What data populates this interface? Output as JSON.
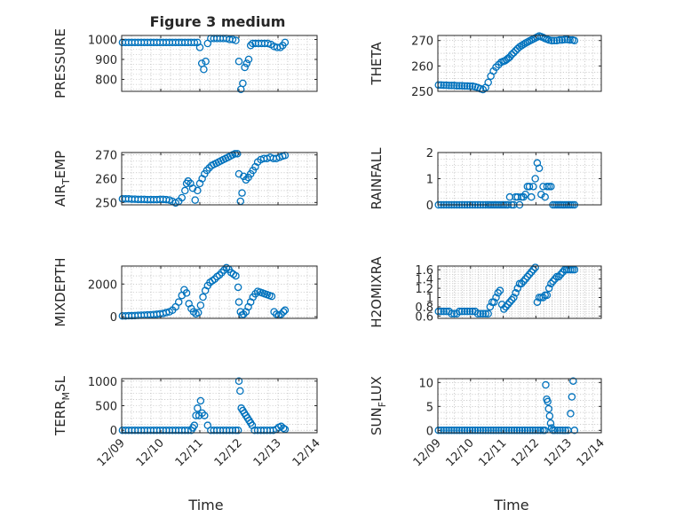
{
  "figure": {
    "title": "Figure 3 medium",
    "marker_color": "#0072BD"
  },
  "chart_data": [
    {
      "type": "scatter",
      "ylabel": "PRESSURE",
      "xlabel": "",
      "xlim": [
        0,
        5
      ],
      "ylim": [
        740,
        1020
      ],
      "yticks": [
        800,
        900,
        1000
      ],
      "yticklabels": [
        "800",
        "900",
        "1000"
      ],
      "xticklabels": [],
      "grid": true,
      "x": [
        0.02,
        0.1,
        0.18,
        0.26,
        0.34,
        0.42,
        0.5,
        0.58,
        0.66,
        0.74,
        0.82,
        0.9,
        0.98,
        1.06,
        1.14,
        1.22,
        1.3,
        1.38,
        1.46,
        1.54,
        1.62,
        1.7,
        1.78,
        1.86,
        1.94,
        2.0,
        2.05,
        2.1,
        2.15,
        2.2,
        2.28,
        2.36,
        2.44,
        2.52,
        2.6,
        2.68,
        2.76,
        2.84,
        2.92,
        3.0,
        3.05,
        3.1,
        3.15,
        3.2,
        3.25,
        3.3,
        3.35,
        3.42,
        3.5,
        3.58,
        3.66,
        3.74,
        3.82,
        3.9,
        3.98,
        4.06,
        4.12,
        4.18
      ],
      "y": [
        985,
        985,
        985,
        985,
        985,
        985,
        985,
        985,
        985,
        985,
        985,
        985,
        985,
        985,
        985,
        985,
        985,
        985,
        985,
        985,
        985,
        985,
        985,
        985,
        985,
        960,
        880,
        850,
        890,
        980,
        1005,
        1005,
        1005,
        1005,
        1005,
        1005,
        1000,
        1000,
        995,
        890,
        750,
        780,
        860,
        880,
        900,
        970,
        980,
        980,
        980,
        980,
        980,
        980,
        975,
        965,
        960,
        960,
        970,
        985
      ]
    },
    {
      "type": "scatter",
      "ylabel": "THETA",
      "xlabel": "",
      "xlim": [
        0,
        5
      ],
      "ylim": [
        250,
        272
      ],
      "yticks": [
        250,
        260,
        270
      ],
      "yticklabels": [
        "250",
        "260",
        "270"
      ],
      "xticklabels": [],
      "grid": true,
      "x": [
        0.02,
        0.1,
        0.18,
        0.26,
        0.34,
        0.42,
        0.5,
        0.58,
        0.66,
        0.74,
        0.82,
        0.9,
        0.98,
        1.06,
        1.14,
        1.22,
        1.3,
        1.38,
        1.46,
        1.54,
        1.62,
        1.7,
        1.78,
        1.86,
        1.94,
        2.0,
        2.05,
        2.1,
        2.15,
        2.2,
        2.26,
        2.32,
        2.38,
        2.44,
        2.5,
        2.56,
        2.62,
        2.68,
        2.74,
        2.8,
        2.86,
        2.92,
        2.98,
        3.04,
        3.1,
        3.16,
        3.22,
        3.28,
        3.34,
        3.4,
        3.48,
        3.56,
        3.64,
        3.72,
        3.8,
        3.88,
        3.96,
        4.04,
        4.12,
        4.18
      ],
      "y": [
        252.5,
        252.5,
        252.4,
        252.4,
        252.3,
        252.3,
        252.3,
        252.2,
        252.2,
        252.2,
        252.1,
        252.1,
        252.0,
        252.0,
        251.8,
        251.5,
        251.0,
        250.7,
        251.5,
        253.5,
        256,
        258,
        259.5,
        260.5,
        261.5,
        261.8,
        262,
        262.5,
        263,
        263.5,
        264.5,
        265.2,
        266,
        266.8,
        267.5,
        268,
        268.5,
        269,
        269.4,
        269.8,
        270.2,
        270.6,
        271,
        271.4,
        271.8,
        271.5,
        271.2,
        270.8,
        270.5,
        270.2,
        270,
        270,
        270,
        270.2,
        270.2,
        270.4,
        270.4,
        270.2,
        270.2,
        270
      ]
    },
    {
      "type": "scatter",
      "ylabel": "AIR_TEMP",
      "xlabel": "",
      "xlim": [
        0,
        5
      ],
      "ylim": [
        249,
        271
      ],
      "yticks": [
        250,
        260,
        270
      ],
      "yticklabels": [
        "250",
        "260",
        "270"
      ],
      "xticklabels": [],
      "grid": true,
      "x": [
        0.02,
        0.1,
        0.18,
        0.26,
        0.34,
        0.42,
        0.5,
        0.58,
        0.66,
        0.74,
        0.82,
        0.9,
        0.98,
        1.06,
        1.14,
        1.22,
        1.3,
        1.38,
        1.46,
        1.54,
        1.62,
        1.66,
        1.7,
        1.76,
        1.82,
        1.88,
        1.94,
        2.0,
        2.06,
        2.12,
        2.18,
        2.24,
        2.3,
        2.36,
        2.42,
        2.48,
        2.54,
        2.6,
        2.66,
        2.72,
        2.78,
        2.84,
        2.9,
        2.96,
        3.0,
        3.04,
        3.08,
        3.12,
        3.18,
        3.24,
        3.3,
        3.36,
        3.42,
        3.48,
        3.56,
        3.64,
        3.72,
        3.8,
        3.88,
        3.96,
        4.04,
        4.12,
        4.18
      ],
      "y": [
        251.5,
        251.5,
        251.5,
        251.4,
        251.4,
        251.3,
        251.3,
        251.3,
        251.2,
        251.2,
        251.2,
        251.2,
        251.3,
        251.3,
        251.2,
        251.0,
        250.5,
        249.8,
        250.5,
        252,
        255,
        258,
        259,
        258,
        256,
        251,
        255,
        258,
        260,
        262,
        263.5,
        264.5,
        265.5,
        266,
        266.5,
        267,
        267.5,
        268,
        268.5,
        269,
        269.5,
        270,
        270.5,
        270.5,
        262,
        250.5,
        254,
        261,
        259.5,
        260.5,
        262,
        263.5,
        265,
        267,
        268,
        268.5,
        268.5,
        269,
        268.5,
        268.5,
        269,
        269.5,
        269.8
      ]
    },
    {
      "type": "scatter",
      "ylabel": "RAINFALL",
      "xlabel": "",
      "xlim": [
        0,
        5
      ],
      "ylim": [
        0,
        2
      ],
      "yticks": [
        0,
        1,
        2
      ],
      "yticklabels": [
        "0",
        "1",
        "2"
      ],
      "xticklabels": [],
      "grid": true,
      "x": [
        0.02,
        0.1,
        0.18,
        0.26,
        0.34,
        0.42,
        0.5,
        0.58,
        0.66,
        0.74,
        0.82,
        0.9,
        0.98,
        1.06,
        1.14,
        1.22,
        1.3,
        1.38,
        1.46,
        1.54,
        1.6,
        1.66,
        1.72,
        1.78,
        1.84,
        1.9,
        1.96,
        2.02,
        2.08,
        2.14,
        2.2,
        2.26,
        2.32,
        2.38,
        2.44,
        2.5,
        2.56,
        2.62,
        2.68,
        2.74,
        2.8,
        2.86,
        2.92,
        2.98,
        3.04,
        3.1,
        3.16,
        3.22,
        3.28,
        3.34,
        3.4,
        3.46,
        3.52,
        3.58,
        3.64,
        3.7,
        3.76,
        3.82,
        3.88,
        3.94,
        4.0,
        4.06,
        4.12,
        4.18
      ],
      "y": [
        0,
        0,
        0,
        0,
        0,
        0,
        0,
        0,
        0,
        0,
        0,
        0,
        0,
        0,
        0,
        0,
        0,
        0,
        0,
        0,
        0,
        0,
        0,
        0,
        0,
        0,
        0,
        0,
        0,
        0,
        0.3,
        0,
        0,
        0.3,
        0.3,
        0,
        0.3,
        0.3,
        0.4,
        0.7,
        0.7,
        0.3,
        0.7,
        1.0,
        1.6,
        1.4,
        0.4,
        0.7,
        0.3,
        0.7,
        0.7,
        0.7,
        0,
        0,
        0,
        0,
        0,
        0,
        0,
        0,
        0,
        0,
        0,
        0
      ]
    },
    {
      "type": "scatter",
      "ylabel": "MIXDEPTH",
      "xlabel": "",
      "xlim": [
        0,
        5
      ],
      "ylim": [
        -100,
        3100
      ],
      "yticks": [
        0,
        2000
      ],
      "yticklabels": [
        "0",
        "2000"
      ],
      "xticklabels": [],
      "grid": true,
      "x": [
        0.02,
        0.1,
        0.18,
        0.26,
        0.34,
        0.42,
        0.5,
        0.58,
        0.66,
        0.74,
        0.82,
        0.9,
        0.98,
        1.06,
        1.14,
        1.22,
        1.3,
        1.38,
        1.46,
        1.54,
        1.6,
        1.66,
        1.72,
        1.78,
        1.84,
        1.9,
        1.96,
        2.02,
        2.08,
        2.14,
        2.2,
        2.26,
        2.32,
        2.38,
        2.44,
        2.5,
        2.56,
        2.62,
        2.68,
        2.74,
        2.8,
        2.86,
        2.92,
        2.98,
        3.0,
        3.04,
        3.08,
        3.12,
        3.18,
        3.24,
        3.3,
        3.36,
        3.42,
        3.48,
        3.54,
        3.6,
        3.66,
        3.72,
        3.78,
        3.84,
        3.9,
        3.96,
        4.02,
        4.08,
        4.14,
        4.18
      ],
      "y": [
        50,
        50,
        60,
        60,
        70,
        80,
        90,
        100,
        110,
        120,
        130,
        150,
        170,
        200,
        250,
        300,
        400,
        600,
        900,
        1300,
        1650,
        1450,
        800,
        500,
        300,
        180,
        250,
        700,
        1200,
        1600,
        1900,
        2100,
        2200,
        2300,
        2450,
        2550,
        2700,
        2850,
        3000,
        2900,
        2700,
        2600,
        2500,
        1800,
        900,
        300,
        100,
        150,
        300,
        600,
        900,
        1200,
        1400,
        1550,
        1500,
        1450,
        1400,
        1350,
        1300,
        1250,
        300,
        150,
        100,
        150,
        300,
        400
      ]
    },
    {
      "type": "scatter",
      "ylabel": "H2OMIXRA",
      "xlabel": "",
      "xlim": [
        0,
        5
      ],
      "ylim": [
        0.55,
        1.68
      ],
      "yticks": [
        0.6,
        0.8,
        1,
        1.2,
        1.4,
        1.6
      ],
      "yticklabels": [
        "0.6",
        "0.8",
        "1",
        "1.2",
        "1.4",
        "1.6"
      ],
      "xticklabels": [],
      "grid": true,
      "x": [
        0.02,
        0.1,
        0.18,
        0.26,
        0.34,
        0.42,
        0.5,
        0.58,
        0.66,
        0.74,
        0.82,
        0.9,
        0.98,
        1.06,
        1.14,
        1.22,
        1.3,
        1.38,
        1.46,
        1.54,
        1.6,
        1.66,
        1.72,
        1.78,
        1.84,
        1.9,
        1.96,
        2.02,
        2.08,
        2.14,
        2.2,
        2.26,
        2.32,
        2.38,
        2.44,
        2.5,
        2.56,
        2.62,
        2.68,
        2.74,
        2.8,
        2.86,
        2.92,
        2.98,
        3.04,
        3.1,
        3.16,
        3.22,
        3.28,
        3.34,
        3.4,
        3.46,
        3.52,
        3.58,
        3.64,
        3.7,
        3.76,
        3.82,
        3.88,
        3.94,
        4.0,
        4.06,
        4.12,
        4.18
      ],
      "y": [
        0.7,
        0.7,
        0.7,
        0.7,
        0.7,
        0.65,
        0.65,
        0.65,
        0.7,
        0.7,
        0.7,
        0.7,
        0.7,
        0.7,
        0.7,
        0.65,
        0.65,
        0.65,
        0.65,
        0.65,
        0.8,
        0.9,
        0.9,
        1.0,
        1.1,
        1.15,
        0.85,
        0.75,
        0.8,
        0.85,
        0.9,
        0.95,
        1.0,
        1.1,
        1.2,
        1.3,
        1.3,
        1.35,
        1.4,
        1.45,
        1.5,
        1.55,
        1.6,
        1.65,
        0.9,
        1.0,
        1.0,
        1.0,
        1.05,
        1.05,
        1.2,
        1.3,
        1.35,
        1.4,
        1.45,
        1.45,
        1.5,
        1.55,
        1.6,
        1.6,
        1.6,
        1.6,
        1.6,
        1.6
      ]
    },
    {
      "type": "scatter",
      "ylabel": "TERR_MSL",
      "xlabel": "Time",
      "xlim": [
        0,
        5
      ],
      "ylim": [
        -50,
        1050
      ],
      "yticks": [
        0,
        500,
        1000
      ],
      "yticklabels": [
        "0",
        "500",
        "1000"
      ],
      "xticks": [
        0,
        1,
        2,
        3,
        4,
        5
      ],
      "xticklabels": [
        "12/09",
        "12/10",
        "12/11",
        "12/12",
        "12/13",
        "12/14"
      ],
      "grid": true,
      "x": [
        0.02,
        0.1,
        0.18,
        0.26,
        0.34,
        0.42,
        0.5,
        0.58,
        0.66,
        0.74,
        0.82,
        0.9,
        0.98,
        1.06,
        1.14,
        1.22,
        1.3,
        1.38,
        1.46,
        1.54,
        1.62,
        1.7,
        1.78,
        1.82,
        1.86,
        1.9,
        1.94,
        1.98,
        2.02,
        2.06,
        2.12,
        2.2,
        2.28,
        2.36,
        2.44,
        2.52,
        2.6,
        2.68,
        2.76,
        2.84,
        2.92,
        2.98,
        3.0,
        3.03,
        3.06,
        3.1,
        3.14,
        3.18,
        3.22,
        3.26,
        3.3,
        3.34,
        3.4,
        3.48,
        3.56,
        3.64,
        3.72,
        3.8,
        3.88,
        3.96,
        4.02,
        4.08,
        4.14,
        4.18
      ],
      "y": [
        0,
        0,
        0,
        0,
        0,
        0,
        0,
        0,
        0,
        0,
        0,
        0,
        0,
        0,
        0,
        0,
        0,
        0,
        0,
        0,
        0,
        0,
        0,
        50,
        100,
        300,
        450,
        300,
        600,
        350,
        300,
        100,
        0,
        0,
        0,
        0,
        0,
        0,
        0,
        0,
        0,
        0,
        1000,
        800,
        450,
        400,
        350,
        300,
        250,
        200,
        150,
        100,
        0,
        0,
        0,
        0,
        0,
        0,
        0,
        20,
        60,
        80,
        40,
        20
      ]
    },
    {
      "type": "scatter",
      "ylabel": "SUN_FLUX",
      "xlabel": "Time",
      "xlim": [
        0,
        5
      ],
      "ylim": [
        -0.5,
        10.8
      ],
      "yticks": [
        0,
        5,
        10
      ],
      "yticklabels": [
        "0",
        "5",
        "10"
      ],
      "xticks": [
        0,
        1,
        2,
        3,
        4,
        5
      ],
      "xticklabels": [
        "12/09",
        "12/10",
        "12/11",
        "12/12",
        "12/13",
        "12/14"
      ],
      "grid": true,
      "x": [
        0.02,
        0.1,
        0.18,
        0.26,
        0.34,
        0.42,
        0.5,
        0.58,
        0.66,
        0.74,
        0.82,
        0.9,
        0.98,
        1.06,
        1.14,
        1.22,
        1.3,
        1.38,
        1.46,
        1.54,
        1.62,
        1.7,
        1.78,
        1.86,
        1.94,
        2.02,
        2.1,
        2.18,
        2.26,
        2.34,
        2.42,
        2.5,
        2.58,
        2.66,
        2.74,
        2.82,
        2.9,
        2.98,
        3.06,
        3.14,
        3.22,
        3.27,
        3.3,
        3.33,
        3.36,
        3.39,
        3.42,
        3.45,
        3.48,
        3.52,
        3.58,
        3.66,
        3.74,
        3.82,
        3.9,
        3.98,
        4.06,
        4.1,
        4.14,
        4.18
      ],
      "y": [
        0,
        0,
        0,
        0,
        0,
        0,
        0,
        0,
        0,
        0,
        0,
        0,
        0,
        0,
        0,
        0,
        0,
        0,
        0,
        0,
        0,
        0,
        0,
        0,
        0,
        0,
        0,
        0,
        0,
        0,
        0,
        0,
        0,
        0,
        0,
        0,
        0,
        0,
        0,
        0,
        0,
        0,
        9.5,
        6.5,
        6.0,
        4.5,
        3.0,
        1.5,
        0.5,
        0,
        0,
        0,
        0,
        0,
        0,
        0,
        3.5,
        7.0,
        10.3,
        0
      ]
    }
  ]
}
